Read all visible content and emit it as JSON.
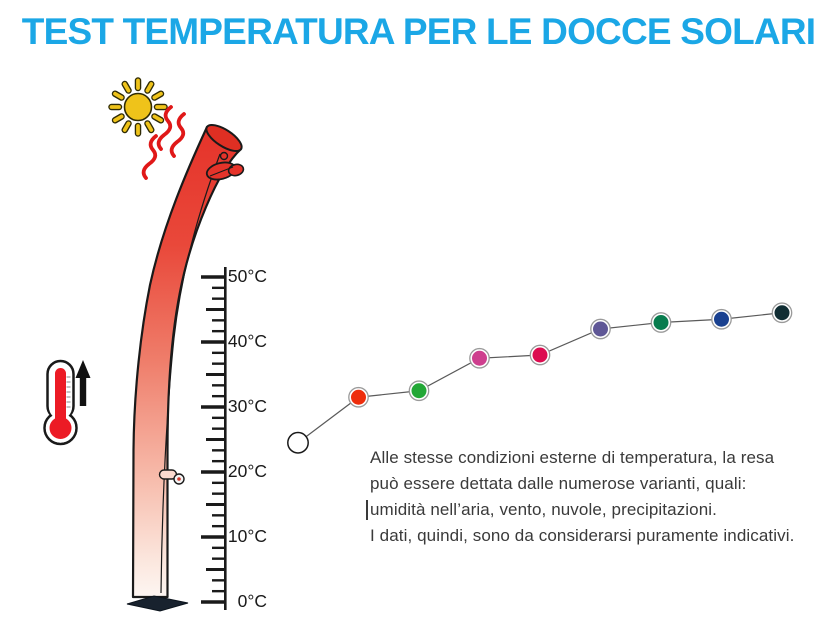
{
  "title": "TEST TEMPERATURA PER LE DOCCE SOLARI",
  "caption": {
    "lines": [
      "Alle stesse condizioni esterne di temperatura, la resa",
      "può essere dettata dalle numerose varianti, quali:",
      "umidità nell’aria, vento, nuvole, precipitazioni.",
      "I dati, quindi, sono da considerarsi puramente indicativi."
    ]
  },
  "scale": {
    "unit": "°C",
    "min": 0,
    "max": 50,
    "step": 10,
    "labels": [
      "50°C",
      "40°C",
      "30°C",
      "20°C",
      "10°C",
      "0°C"
    ]
  },
  "chart_data": {
    "type": "line",
    "title": "TEST TEMPERATURA PER LE DOCCE SOLARI",
    "xlabel": "",
    "ylabel": "°C",
    "ylim": [
      0,
      50
    ],
    "yticks": [
      "0°C",
      "10°C",
      "20°C",
      "30°C",
      "40°C",
      "50°C"
    ],
    "grid": false,
    "legend": false,
    "values": [
      24.5,
      31.5,
      32.5,
      37.5,
      38,
      42,
      43,
      43.5,
      44.5
    ],
    "point_colors": [
      "#FFFFFF",
      "#EE2D0C",
      "#22A736",
      "#CE3F8E",
      "#DC0C50",
      "#5F5796",
      "#077C4E",
      "#1A4190",
      "#102D33"
    ]
  },
  "icons": {
    "sun": "sun-icon",
    "heat_waves": "heat-waves-icon",
    "shower": "solar-shower-illustration",
    "thermometer": "thermometer-rising-icon",
    "up_arrow": "up-arrow-icon",
    "ruler": "temperature-scale-ruler"
  },
  "colors": {
    "title": "#1BA7E6",
    "body_text": "#3A3A3A",
    "chart_line": "#5A5A5A",
    "ruler_ink": "#1A1A1A",
    "column_red": "#E5332A",
    "column_fade": "#FDF6F2",
    "sun_yellow": "#EFC31A",
    "heat_red": "#E01818",
    "mercury_red": "#EC1B25",
    "dot_ring": "#9A9A9A"
  }
}
